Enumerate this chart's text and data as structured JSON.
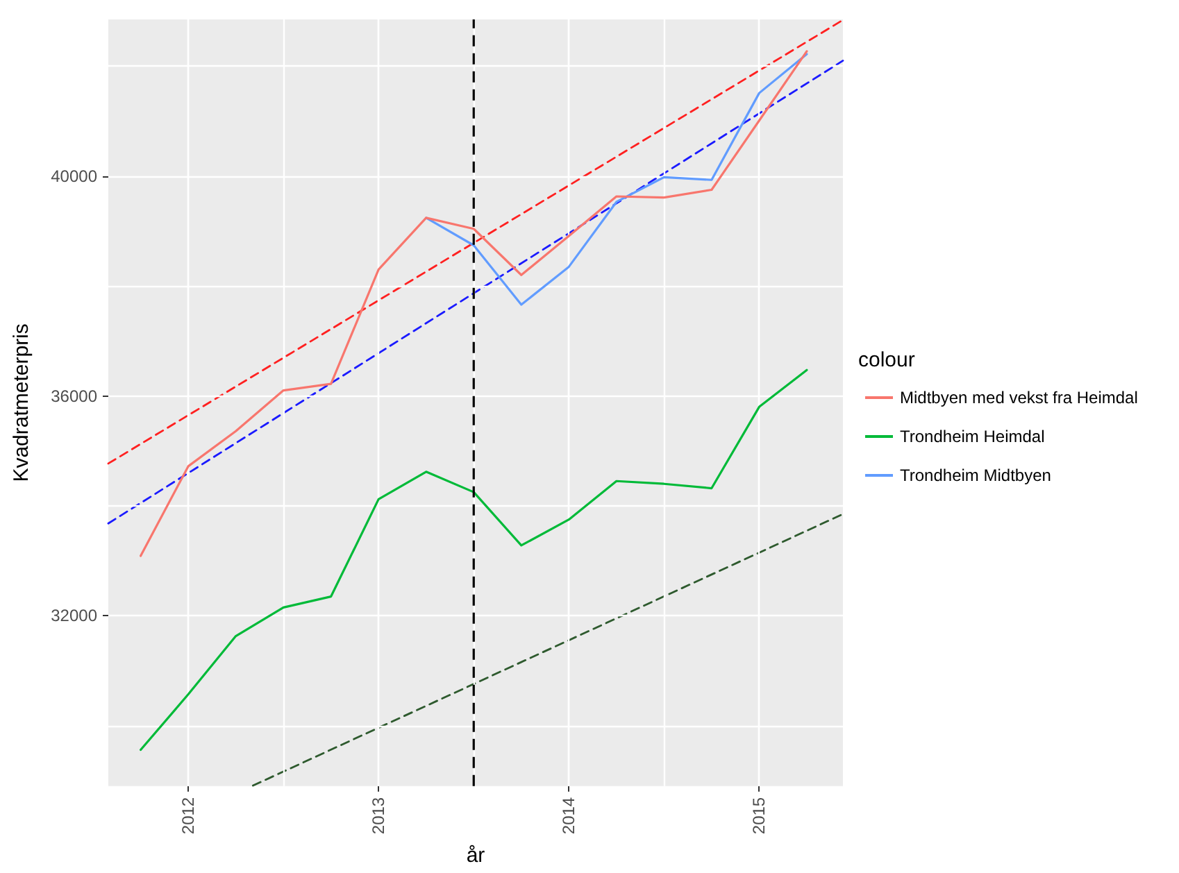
{
  "chart_data": {
    "type": "line",
    "xlabel": "år",
    "ylabel": "Kvadratmeterpris",
    "legend_title": "colour",
    "x": [
      2011.75,
      2012,
      2012.25,
      2012.5,
      2012.75,
      2013,
      2013.25,
      2013.5,
      2013.75,
      2014,
      2014.25,
      2014.5,
      2014.75,
      2015,
      2015.25
    ],
    "series": [
      {
        "name": "Midtbyen med vekst fra Heimdal",
        "color": "#f8766d",
        "values": [
          33090,
          34720,
          35360,
          36100,
          36220,
          38300,
          39240,
          39040,
          38200,
          38910,
          39630,
          39610,
          39750,
          41010,
          42270
        ]
      },
      {
        "name": "Trondheim Heimdal",
        "color": "#00ba38",
        "values": [
          29560,
          30570,
          31630,
          32150,
          32350,
          34120,
          34620,
          34250,
          33280,
          33750,
          34450,
          34400,
          34320,
          35800,
          36470
        ]
      },
      {
        "name": "Trondheim Midtbyen",
        "color": "#619cff",
        "values": [
          null,
          null,
          null,
          null,
          null,
          null,
          39240,
          38740,
          37660,
          38350,
          39530,
          39980,
          39930,
          41510,
          42220
        ]
      },
      {
        "color": "#ff2020",
        "x": [
          2011.58,
          2015.44
        ],
        "values": [
          34770,
          42840
        ],
        "line_style": "dashed"
      },
      {
        "color": "#1a1aff",
        "x": [
          2011.58,
          2015.44
        ],
        "values": [
          33680,
          42100
        ],
        "line_style": "dashed"
      },
      {
        "color": "#2e5a2e",
        "x": [
          2012.34,
          2015.44
        ],
        "values": [
          28910,
          33850
        ],
        "line_style": "dashed"
      }
    ],
    "ref_lines": [
      {
        "axis": "x",
        "value": 2013.5,
        "color": "#000000",
        "line_style": "dashed"
      }
    ],
    "xlim": [
      2011.58,
      2015.44
    ],
    "ylim": [
      28900,
      42850
    ],
    "xticks": [
      2012,
      {
        "value": 2012.5,
        "label": null
      },
      2013,
      {
        "value": 2013.5,
        "label": null
      },
      2014,
      {
        "value": 2014.5,
        "label": null
      },
      2015
    ],
    "yticks": [
      {
        "value": 30000,
        "label": null
      },
      32000,
      {
        "value": 34000,
        "label": null
      },
      36000,
      {
        "value": 38000,
        "label": null
      },
      40000,
      {
        "value": 42000,
        "label": null
      }
    ],
    "grid": true,
    "legend": "right",
    "marker": "none",
    "line_style": "solid"
  }
}
